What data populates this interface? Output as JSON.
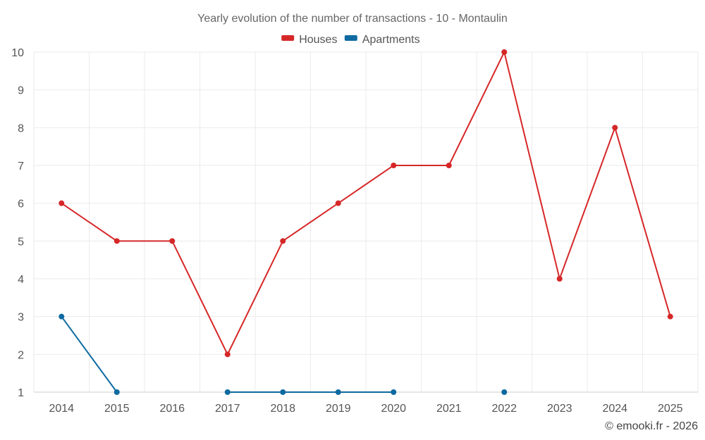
{
  "chart_data": {
    "type": "line",
    "title": "Yearly evolution of the number of transactions - 10 - Montaulin",
    "categories": [
      "2014",
      "2015",
      "2016",
      "2017",
      "2018",
      "2019",
      "2020",
      "2021",
      "2022",
      "2023",
      "2024",
      "2025"
    ],
    "ylim": [
      1,
      10
    ],
    "yticks": [
      1,
      2,
      3,
      4,
      5,
      6,
      7,
      8,
      9,
      10
    ],
    "grid": true,
    "legend_position": "top-center",
    "series": [
      {
        "name": "Houses",
        "color": "#d62728",
        "values": [
          6,
          5,
          5,
          2,
          5,
          6,
          7,
          7,
          10,
          4,
          8,
          3
        ]
      },
      {
        "name": "Apartments",
        "color": "#0e6aa0",
        "values": [
          3,
          1,
          null,
          1,
          1,
          1,
          1,
          null,
          1,
          null,
          null,
          null
        ]
      }
    ]
  },
  "credit": "© emooki.fr - 2026"
}
